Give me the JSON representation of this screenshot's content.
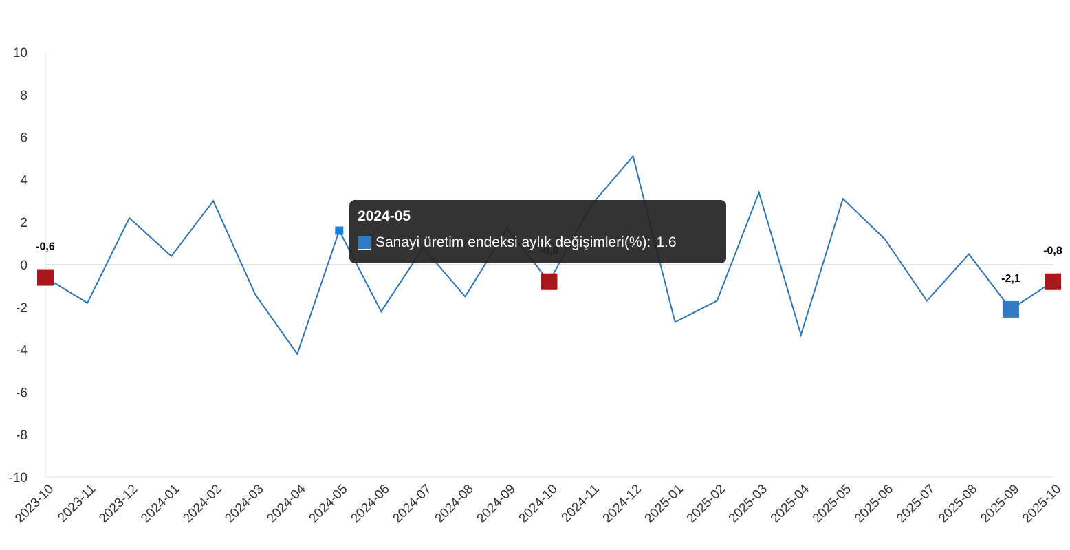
{
  "chart_data": {
    "type": "line",
    "categories": [
      "2023-10",
      "2023-11",
      "2023-12",
      "2024-01",
      "2024-02",
      "2024-03",
      "2024-04",
      "2024-05",
      "2024-06",
      "2024-07",
      "2024-08",
      "2024-09",
      "2024-10",
      "2024-11",
      "2024-12",
      "2025-01",
      "2025-02",
      "2025-03",
      "2025-04",
      "2025-05",
      "2025-06",
      "2025-07",
      "2025-08",
      "2025-09",
      "2025-10"
    ],
    "series": [
      {
        "name": "Sanayi üretim endeksi aylık değişimleri(%)",
        "values": [
          -0.6,
          -1.8,
          2.2,
          0.4,
          3.0,
          -1.4,
          -4.2,
          1.6,
          -2.2,
          0.8,
          -1.5,
          1.7,
          -0.8,
          2.8,
          5.1,
          -2.7,
          -1.7,
          3.4,
          -3.3,
          3.1,
          1.2,
          -1.7,
          0.5,
          -2.1,
          -0.8
        ]
      }
    ],
    "ylim": [
      -10,
      10
    ],
    "yticks": [
      "10",
      "8",
      "6",
      "4",
      "2",
      "0",
      "-2",
      "-4",
      "-6",
      "-8",
      "-10"
    ],
    "ytick_values": [
      10,
      8,
      6,
      4,
      2,
      0,
      -2,
      -4,
      -6,
      -8,
      -10
    ],
    "data_labels": [
      {
        "index": 0,
        "text": "-0,6",
        "marker": "red"
      },
      {
        "index": 12,
        "text": "-0,8",
        "marker": "red"
      },
      {
        "index": 23,
        "text": "-2,1",
        "marker": "blue"
      },
      {
        "index": 24,
        "text": "-0,8",
        "marker": "red"
      }
    ],
    "highlight_index": 7,
    "grid": false,
    "colors": {
      "line": "#2e74b0",
      "red_marker": "#a8171b",
      "blue_marker": "#2e7bc4",
      "zero_line": "#d9d9d9",
      "axis": "#e0e0e0"
    }
  },
  "tooltip": {
    "title": "2024-05",
    "series_name": "Sanayi üretim endeksi aylık değişimleri(%):",
    "value": "1.6"
  }
}
